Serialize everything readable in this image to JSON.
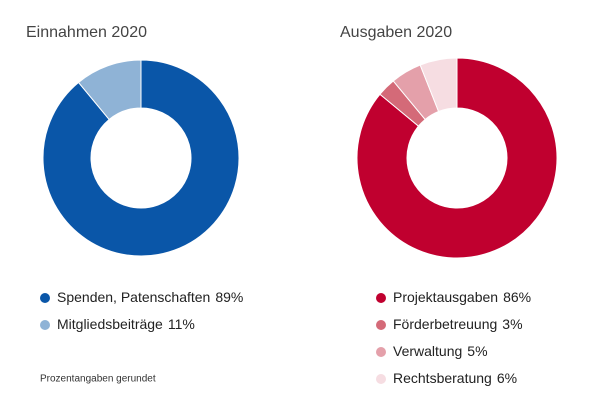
{
  "chart_data": [
    {
      "type": "donut",
      "title": "Einnahmen 2020",
      "categories": [
        "Spenden, Patenschaften",
        "Mitgliedsbeiträge"
      ],
      "values": [
        89,
        11
      ],
      "value_labels": [
        "89%",
        "11%"
      ],
      "colors": [
        "#0a56a8",
        "#8fb3d6"
      ]
    },
    {
      "type": "donut",
      "title": "Ausgaben 2020",
      "categories": [
        "Projektausgaben",
        "Förderbetreuung",
        "Verwaltung",
        "Rechtsberatung"
      ],
      "values": [
        86,
        3,
        5,
        6
      ],
      "value_labels": [
        "86%",
        "3%",
        "5%",
        "6%"
      ],
      "colors": [
        "#c0002f",
        "#d46a78",
        "#e4a0aa",
        "#f6dde2"
      ]
    }
  ],
  "footnote": "Prozentangaben gerundet"
}
